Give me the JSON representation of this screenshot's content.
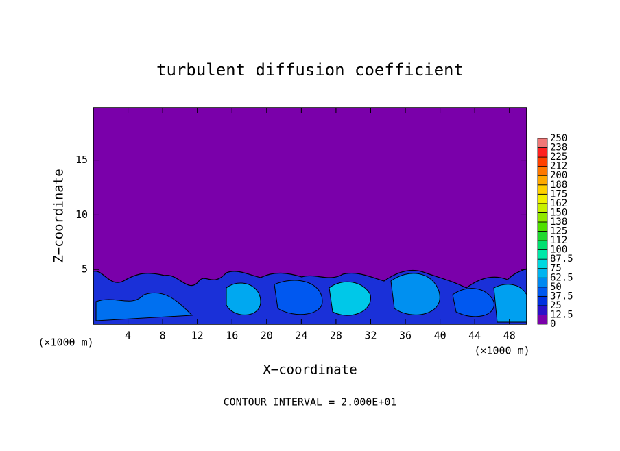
{
  "chart_data": {
    "type": "contour",
    "title": "turbulent diffusion coefficient",
    "xlabel": "X−coordinate",
    "ylabel": "Z−coordinate",
    "unit_label": "(×1000 m)",
    "footnote": "CONTOUR INTERVAL = 2.000E+01",
    "xlim": [
      0,
      50
    ],
    "xticks": [
      4,
      8,
      12,
      16,
      20,
      24,
      28,
      32,
      36,
      40,
      44,
      48
    ],
    "ylim": [
      0,
      19.8
    ],
    "yticks": [
      5,
      10,
      15
    ],
    "colorbar": {
      "levels": [
        0,
        12.5,
        25,
        37.5,
        50,
        62.5,
        75,
        87.5,
        100,
        {
          "value": 112.5,
          "label": "112"
        },
        125,
        {
          "value": 137.5,
          "label": "138"
        },
        150,
        {
          "value": 162.5,
          "label": "162"
        },
        175,
        {
          "value": 187.5,
          "label": "188"
        },
        200,
        {
          "value": 212.5,
          "label": "212"
        },
        225,
        {
          "value": 237.5,
          "label": "238"
        },
        250
      ],
      "colors": [
        "#7a00aa",
        "#2a10c8",
        "#0030e0",
        "#0058f0",
        "#0088f0",
        "#00b4f0",
        "#00d8e0",
        "#00e8a8",
        "#00e070",
        "#20d830",
        "#50e000",
        "#90e800",
        "#c8f000",
        "#f0f000",
        "#ffd000",
        "#ffa800",
        "#ff7800",
        "#ff4000",
        "#ff2020",
        "#f07878"
      ]
    }
  }
}
